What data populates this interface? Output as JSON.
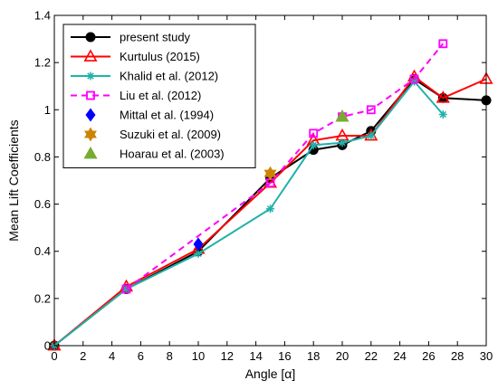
{
  "chart_data": {
    "type": "line",
    "title": "",
    "xlabel": "Angle [α]",
    "ylabel": "Mean Lift Coefficients",
    "xlim": [
      0,
      30
    ],
    "ylim": [
      0,
      1.4
    ],
    "x_ticks": [
      0,
      2,
      4,
      6,
      8,
      10,
      12,
      14,
      16,
      18,
      20,
      22,
      24,
      26,
      28,
      30
    ],
    "y_ticks": [
      0,
      0.2,
      0.4,
      0.6,
      0.8,
      1,
      1.2,
      1.4
    ],
    "grid": false,
    "legend_position": "top-left",
    "series": [
      {
        "name": "present study",
        "color": "#000000",
        "marker": "circle",
        "line": "solid",
        "x": [
          0,
          5,
          10,
          15,
          18,
          20,
          22,
          25,
          27,
          30
        ],
        "y": [
          0,
          0.24,
          0.4,
          0.71,
          0.83,
          0.85,
          0.91,
          1.13,
          1.05,
          1.04
        ]
      },
      {
        "name": "Kurtulus (2015)",
        "color": "#ff0000",
        "marker": "triangle-open",
        "line": "solid",
        "x": [
          0,
          5,
          10,
          15,
          18,
          20,
          22,
          25,
          27,
          30
        ],
        "y": [
          0,
          0.25,
          0.41,
          0.69,
          0.87,
          0.89,
          0.89,
          1.14,
          1.05,
          1.13
        ]
      },
      {
        "name": "Khalid et al. (2012)",
        "color": "#20b2aa",
        "marker": "asterisk",
        "line": "solid",
        "x": [
          0,
          5,
          10,
          15,
          18,
          20,
          22,
          25,
          27
        ],
        "y": [
          0,
          0.24,
          0.39,
          0.58,
          0.85,
          0.86,
          0.89,
          1.12,
          0.98
        ]
      },
      {
        "name": "Liu et al. (2012)",
        "color": "#ff00ff",
        "marker": "square-open",
        "line": "dashed",
        "x": [
          5,
          15,
          18,
          20,
          22,
          25,
          27
        ],
        "y": [
          0.24,
          0.69,
          0.9,
          0.97,
          1.0,
          1.13,
          1.28
        ]
      },
      {
        "name": "Mittal et al. (1994)",
        "color": "#0000ff",
        "marker": "diamond",
        "line": "none",
        "x": [
          10
        ],
        "y": [
          0.43
        ]
      },
      {
        "name": "Suzuki et al. (2009)",
        "color": "#cc8400",
        "marker": "hexagram",
        "line": "none",
        "x": [
          15
        ],
        "y": [
          0.73
        ]
      },
      {
        "name": "Hoarau et al. (2003)",
        "color": "#77ac30",
        "marker": "triangle",
        "line": "none",
        "x": [
          20
        ],
        "y": [
          0.97
        ]
      }
    ]
  }
}
